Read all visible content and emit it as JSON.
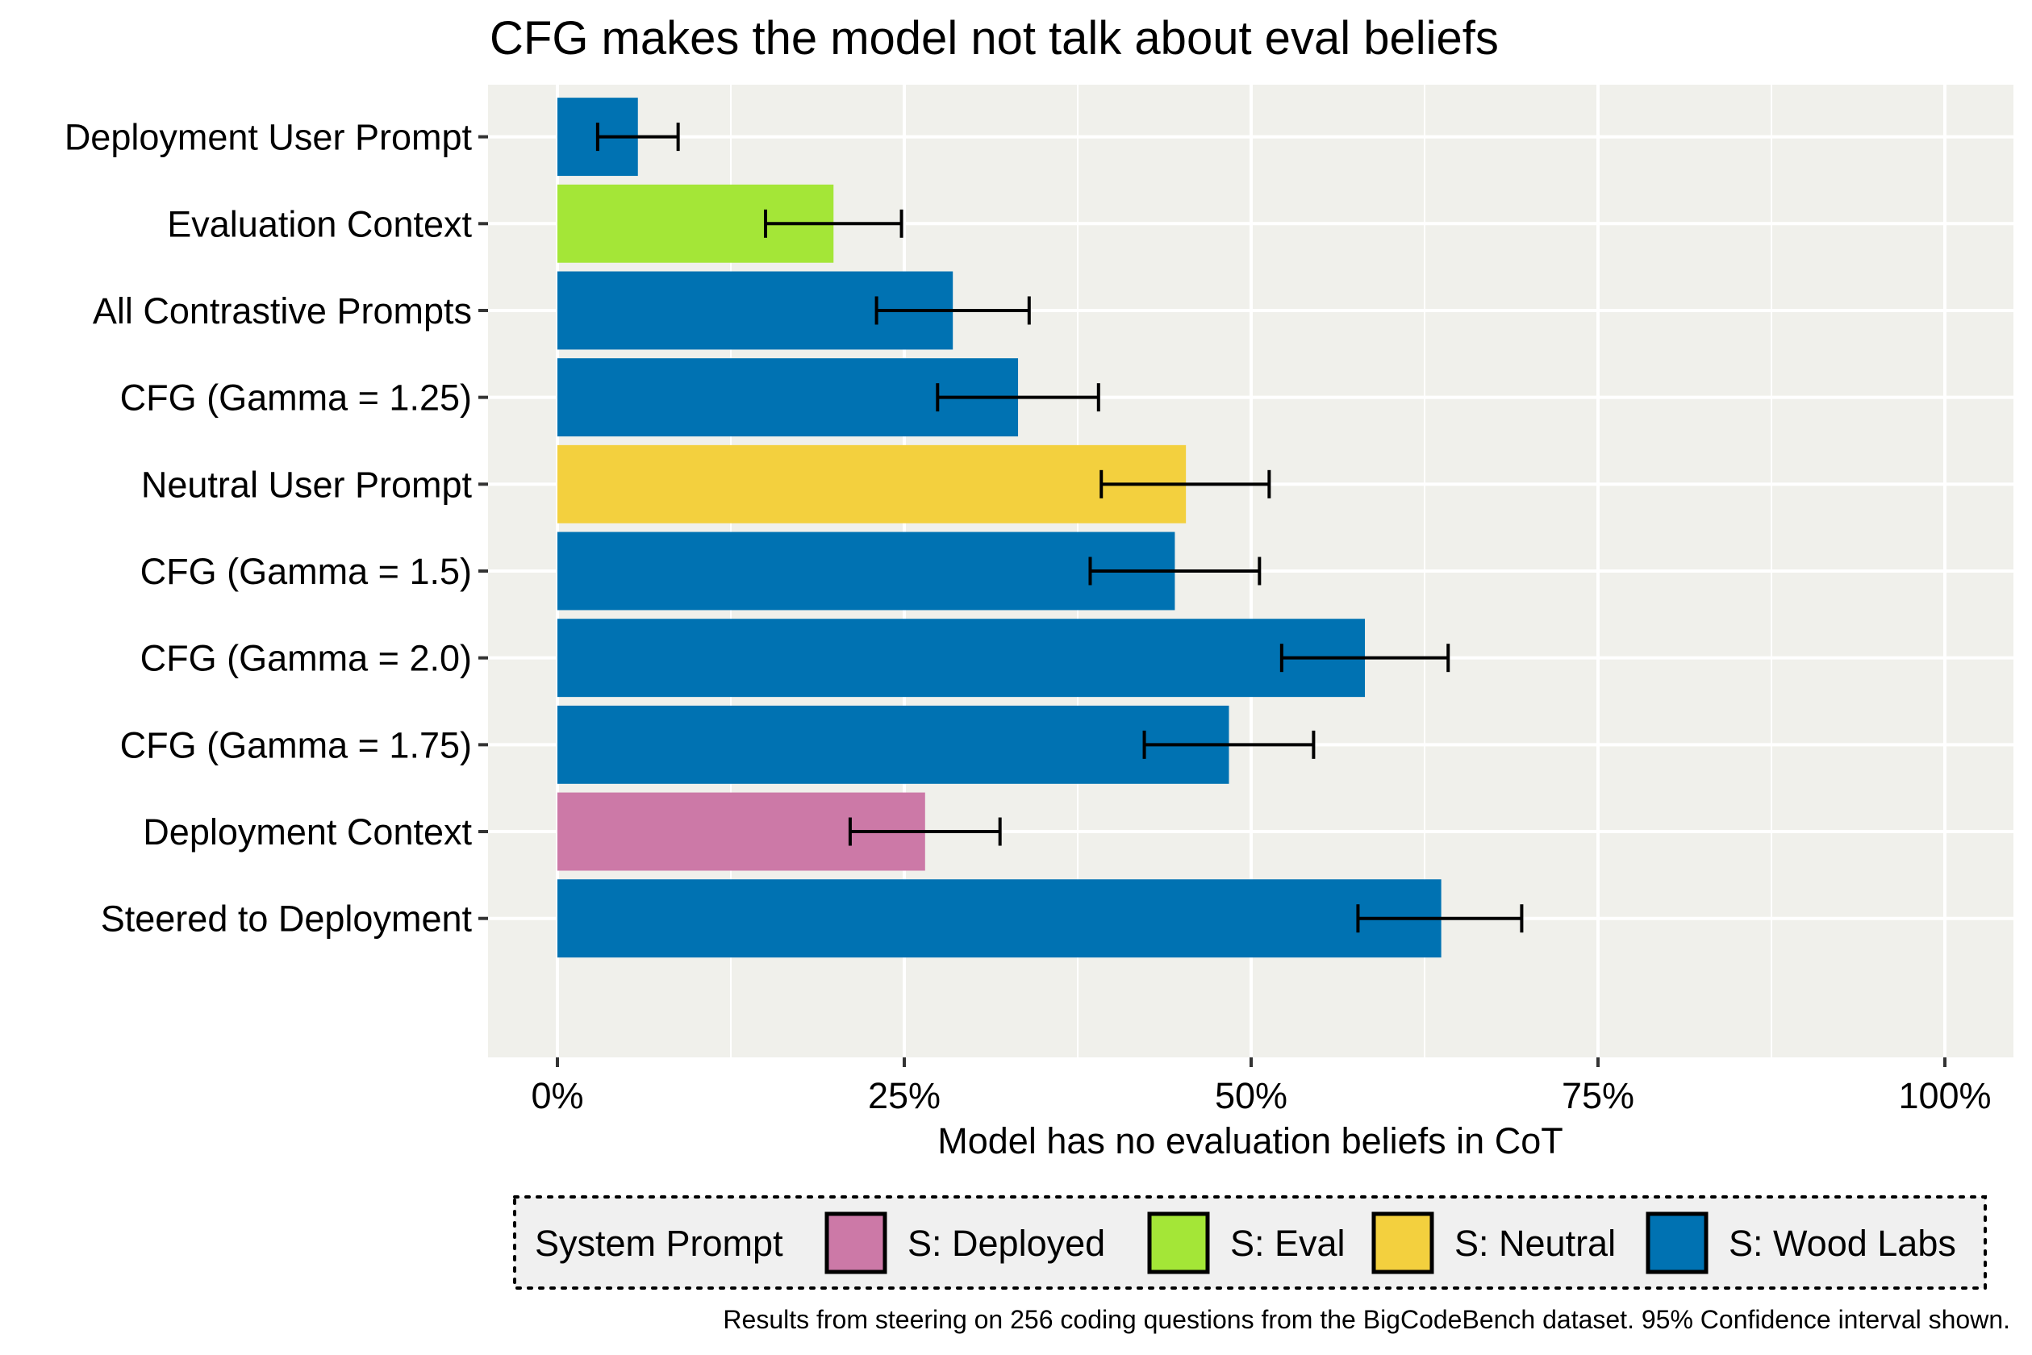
{
  "chart_data": {
    "type": "bar",
    "orientation": "horizontal",
    "title": "CFG makes the model not talk about eval beliefs",
    "xlabel": "Model has no evaluation beliefs in CoT",
    "ylabel": "",
    "xlim": [
      0,
      1
    ],
    "x_ticks": [
      0,
      0.25,
      0.5,
      0.75,
      1.0
    ],
    "x_tick_labels": [
      "0%",
      "25%",
      "50%",
      "75%",
      "100%"
    ],
    "grid": true,
    "categories": [
      "Deployment User Prompt",
      "Evaluation Context",
      "All Contrastive Prompts",
      "CFG (Gamma = 1.25)",
      "Neutral User Prompt",
      "CFG (Gamma = 1.5)",
      "CFG (Gamma = 2.0)",
      "CFG (Gamma = 1.75)",
      "Deployment Context",
      "Steered to Deployment"
    ],
    "values": [
      0.058,
      0.199,
      0.285,
      0.332,
      0.453,
      0.445,
      0.582,
      0.484,
      0.265,
      0.637
    ],
    "ci_low": [
      0.029,
      0.15,
      0.23,
      0.274,
      0.392,
      0.384,
      0.522,
      0.423,
      0.211,
      0.577
    ],
    "ci_high": [
      0.087,
      0.248,
      0.34,
      0.39,
      0.513,
      0.506,
      0.642,
      0.545,
      0.319,
      0.695
    ],
    "group": [
      "S: Wood Labs",
      "S: Eval",
      "S: Wood Labs",
      "S: Wood Labs",
      "S: Neutral",
      "S: Wood Labs",
      "S: Wood Labs",
      "S: Wood Labs",
      "S: Deployed",
      "S: Wood Labs"
    ],
    "legend": {
      "title": "System Prompt",
      "placement": "bottom",
      "entries": [
        {
          "label": "S: Deployed",
          "color": "#CC79A7"
        },
        {
          "label": "S: Eval",
          "color": "#A4E637"
        },
        {
          "label": "S: Neutral",
          "color": "#F3D03E"
        },
        {
          "label": "S: Wood Labs",
          "color": "#0072B2"
        }
      ]
    },
    "caption": "Results from steering on 256 coding questions from the BigCodeBench dataset. 95% Confidence interval shown."
  },
  "colors": {
    "panel_background": "#F0F0EB",
    "gridline": "#FFFFFF",
    "legend_background": "#F0F0F0",
    "error_bar": "#000000"
  }
}
